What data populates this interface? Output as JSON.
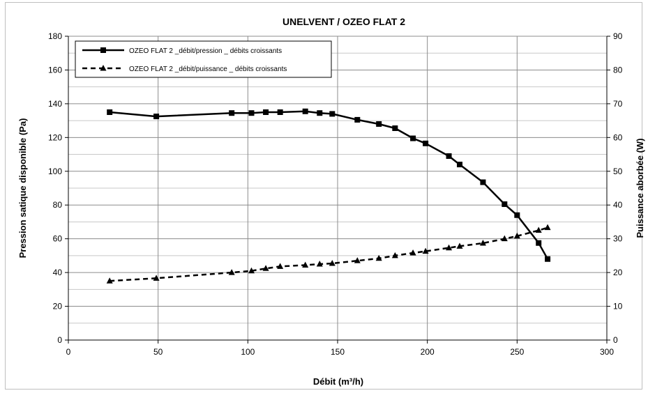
{
  "chart_data": {
    "type": "line",
    "title": "UNELVENT  / OZEO FLAT 2",
    "xlabel": "Débit (m³/h)",
    "ylabel": "Pression satique disponible (Pa)",
    "y2label": "Puissance aborbée (W)",
    "xlim": [
      0,
      300
    ],
    "ylim": [
      0,
      180
    ],
    "y2lim": [
      0,
      90
    ],
    "x_ticks": [
      0,
      50,
      100,
      150,
      200,
      250,
      300
    ],
    "y_ticks": [
      0,
      20,
      40,
      60,
      80,
      100,
      120,
      140,
      160,
      180
    ],
    "y2_ticks": [
      0,
      10,
      20,
      30,
      40,
      50,
      60,
      70,
      80,
      90
    ],
    "grid": true,
    "legend_position": "top-left",
    "series": [
      {
        "name": "OZEO FLAT 2 _débit/pression _ débits croissants",
        "axis": "left",
        "line_style": "solid",
        "marker": "square",
        "color": "#000000",
        "points": [
          [
            23,
            135
          ],
          [
            49,
            132.5
          ],
          [
            91,
            134.5
          ],
          [
            102,
            134.5
          ],
          [
            110,
            135
          ],
          [
            118,
            135
          ],
          [
            132,
            135.5
          ],
          [
            140,
            134.5
          ],
          [
            147,
            134
          ],
          [
            161,
            130.5
          ],
          [
            173,
            128
          ],
          [
            182,
            125.5
          ],
          [
            192,
            119.5
          ],
          [
            199,
            116.5
          ],
          [
            212,
            109
          ],
          [
            218,
            104
          ],
          [
            231,
            93.5
          ],
          [
            243,
            80.5
          ],
          [
            250,
            74
          ],
          [
            262,
            57.5
          ],
          [
            267,
            48
          ]
        ]
      },
      {
        "name": "OZEO FLAT 2 _débit/puissance _ débits croissants",
        "axis": "right",
        "line_style": "dashed",
        "marker": "triangle",
        "color": "#000000",
        "points": [
          [
            23,
            17.5
          ],
          [
            49,
            18.3
          ],
          [
            91,
            20
          ],
          [
            102,
            20.5
          ],
          [
            110,
            21.2
          ],
          [
            118,
            21.8
          ],
          [
            132,
            22.2
          ],
          [
            140,
            22.5
          ],
          [
            147,
            22.7
          ],
          [
            161,
            23.5
          ],
          [
            173,
            24.2
          ],
          [
            182,
            25
          ],
          [
            192,
            25.8
          ],
          [
            199,
            26.3
          ],
          [
            212,
            27.3
          ],
          [
            218,
            27.8
          ],
          [
            231,
            28.7
          ],
          [
            243,
            30
          ],
          [
            250,
            30.8
          ],
          [
            262,
            32.5
          ],
          [
            267,
            33.3
          ]
        ]
      }
    ]
  }
}
